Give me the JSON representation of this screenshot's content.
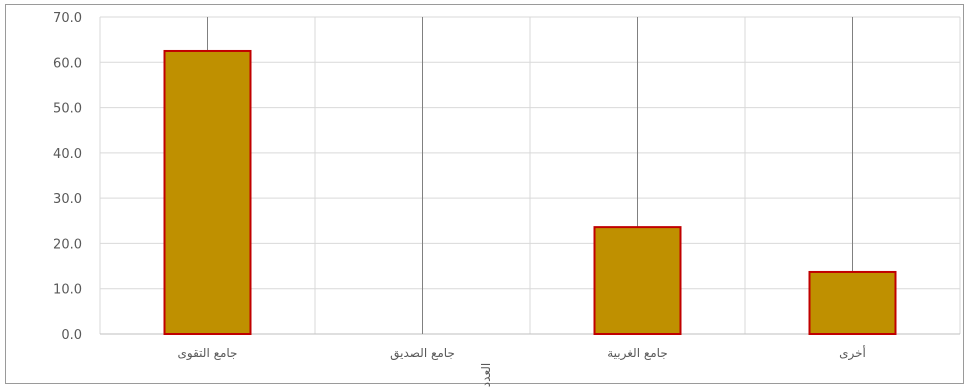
{
  "chart_data": {
    "type": "bar",
    "categories": [
      "جامع التقوى",
      "جامع الصديق",
      "جامع الغربية",
      "أخرى"
    ],
    "values": [
      62.5,
      0.0,
      23.6,
      13.7
    ],
    "yticks": [
      "0.0",
      "10.0",
      "20.0",
      "30.0",
      "40.0",
      "50.0",
      "60.0",
      "70.0"
    ],
    "ylim": [
      0,
      70
    ],
    "ylabel": "العدد",
    "grid": true,
    "colors": {
      "bar_fill": "#bf9000",
      "bar_stroke": "#c00000",
      "grid": "#d9d9d9",
      "drop_line": "#808080"
    }
  }
}
